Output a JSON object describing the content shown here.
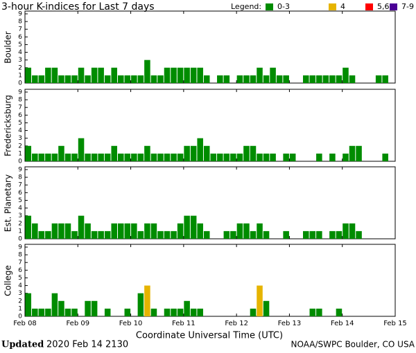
{
  "chart_data": {
    "type": "bar",
    "title": "3-hour K-indices for Last 7 days",
    "legend_title": "Legend:",
    "legend": [
      {
        "label": "0-3",
        "color": "#008c00"
      },
      {
        "label": "4",
        "color": "#e6b400"
      },
      {
        "label": "5,6",
        "color": "#ff0000"
      },
      {
        "label": "7-9",
        "color": "#4b0096"
      }
    ],
    "ylim": [
      0,
      9
    ],
    "yticks": [
      0,
      1,
      2,
      3,
      4,
      5,
      6,
      7,
      8,
      9
    ],
    "x_labels": [
      "Feb 08",
      "Feb 09",
      "Feb 10",
      "Feb 11",
      "Feb 12",
      "Feb 13",
      "Feb 14",
      "Feb 15"
    ],
    "xlabel": "Coordinate Universal Time (UTC)",
    "panels": [
      {
        "name": "Boulder",
        "values": [
          2,
          1,
          1,
          2,
          2,
          1,
          1,
          1,
          2,
          1,
          2,
          2,
          1,
          2,
          1,
          1,
          1,
          1,
          3,
          1,
          1,
          2,
          2,
          2,
          2,
          2,
          2,
          1,
          0,
          1,
          1,
          0,
          1,
          1,
          1,
          2,
          1,
          2,
          1,
          1,
          0,
          0,
          1,
          1,
          1,
          1,
          1,
          1,
          2,
          1,
          0,
          0,
          0,
          1,
          1,
          0
        ]
      },
      {
        "name": "Fredericksburg",
        "values": [
          2,
          1,
          1,
          1,
          1,
          2,
          1,
          1,
          3,
          1,
          1,
          1,
          1,
          2,
          1,
          1,
          1,
          1,
          2,
          1,
          1,
          1,
          1,
          1,
          2,
          2,
          3,
          2,
          1,
          1,
          1,
          1,
          1,
          2,
          2,
          1,
          1,
          1,
          0,
          1,
          1,
          0,
          0,
          0,
          1,
          0,
          1,
          0,
          1,
          2,
          2,
          0,
          0,
          0,
          1,
          0
        ]
      },
      {
        "name": "Est. Planetary",
        "values": [
          3,
          2,
          1,
          1,
          2,
          2,
          2,
          1,
          3,
          2,
          1,
          1,
          1,
          2,
          2,
          2,
          2,
          1,
          2,
          2,
          1,
          1,
          1,
          2,
          3,
          3,
          2,
          1,
          0,
          0,
          1,
          1,
          2,
          2,
          1,
          2,
          1,
          0,
          0,
          1,
          0,
          0,
          1,
          1,
          1,
          0,
          1,
          1,
          2,
          2,
          1,
          0,
          0,
          0,
          0,
          0
        ]
      },
      {
        "name": "College",
        "values": [
          3,
          1,
          1,
          1,
          3,
          2,
          1,
          1,
          0,
          2,
          2,
          0,
          1,
          0,
          0,
          1,
          0,
          3,
          4,
          1,
          0,
          1,
          1,
          1,
          2,
          1,
          1,
          0,
          0,
          0,
          0,
          0,
          0,
          0,
          1,
          4,
          2,
          0,
          0,
          0,
          0,
          0,
          0,
          1,
          1,
          0,
          0,
          1,
          0,
          0,
          0,
          0,
          0,
          0,
          0,
          0
        ]
      }
    ]
  },
  "footer": {
    "updated_label": "Updated",
    "updated_time": "2020 Feb 14 2130",
    "source": "NOAA/SWPC Boulder, CO USA"
  }
}
